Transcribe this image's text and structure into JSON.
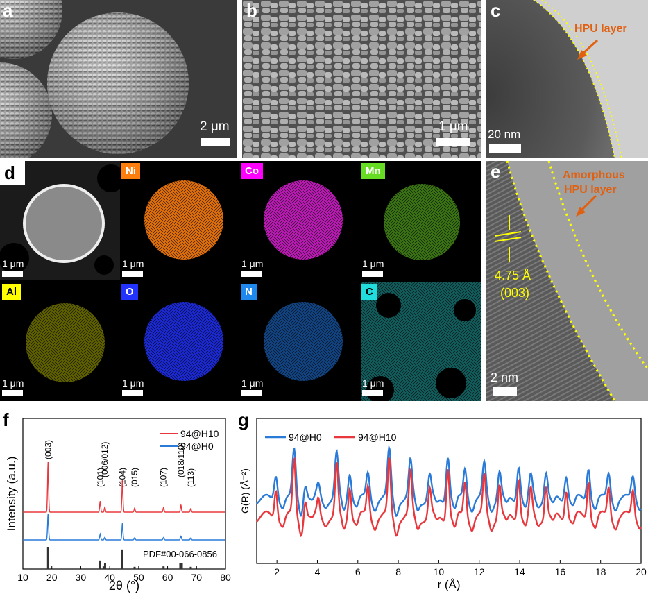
{
  "figure": {
    "panel_a": {
      "label": "a",
      "scale": "2 μm"
    },
    "panel_b": {
      "label": "b",
      "scale": "1 μm"
    },
    "panel_c": {
      "label": "c",
      "scale": "20 nm",
      "annotation": "HPU layer"
    },
    "panel_d": {
      "label": "d",
      "maps": [
        {
          "element": "",
          "scale": "1 μm",
          "color": "#ffffff"
        },
        {
          "element": "Ni",
          "scale": "1 μm",
          "color": "#ff7f0e"
        },
        {
          "element": "Co",
          "scale": "1 μm",
          "color": "#ff00ff"
        },
        {
          "element": "Mn",
          "scale": "1 μm",
          "color": "#66dd22"
        },
        {
          "element": "Al",
          "scale": "1 μm",
          "color": "#ffff00"
        },
        {
          "element": "O",
          "scale": "1 μm",
          "color": "#2233ff"
        },
        {
          "element": "N",
          "scale": "1 μm",
          "color": "#1e88ee"
        },
        {
          "element": "C",
          "scale": "1 μm",
          "color": "#22dddd"
        }
      ]
    },
    "panel_e": {
      "label": "e",
      "scale": "2 nm",
      "annotation_1": "Amorphous",
      "annotation_2": "HPU layer",
      "spacing": "4.75 Å",
      "plane": "(003)"
    },
    "panel_f": {
      "label": "f"
    },
    "panel_g": {
      "label": "g"
    },
    "colors": {
      "annotation": "#e06010",
      "scale": "#ffffff",
      "dotted": "#ffff00",
      "blue": "#2a7ad8",
      "red": "#e8383d",
      "ref": "#333333"
    }
  },
  "chart_data": [
    {
      "type": "line",
      "id": "f",
      "xlabel": "2θ (°)",
      "ylabel": "Intensity (a.u.)",
      "xlim": [
        10,
        80
      ],
      "xticks": [
        "10",
        "20",
        "30",
        "40",
        "50",
        "60",
        "70",
        "80"
      ],
      "series": [
        {
          "name": "94@H0",
          "color": "#2a7ad8"
        },
        {
          "name": "94@H10",
          "color": "#e8383d"
        }
      ],
      "peaks": [
        {
          "label": "(003)",
          "x": 18.7,
          "h": 1.0
        },
        {
          "label": "(101)",
          "x": 36.7,
          "h": 0.22
        },
        {
          "label": "(006/012)",
          "x": 38.3,
          "h": 0.1
        },
        {
          "label": "(104)",
          "x": 44.4,
          "h": 0.65
        },
        {
          "label": "(015)",
          "x": 48.6,
          "h": 0.08
        },
        {
          "label": "(107)",
          "x": 58.6,
          "h": 0.09
        },
        {
          "label": "(018/110)",
          "x": 64.6,
          "h": 0.14
        },
        {
          "label": "(113)",
          "x": 68.0,
          "h": 0.07
        }
      ],
      "reference": {
        "label": "PDF#00-066-0856",
        "lines": [
          {
            "x": 18.7,
            "h": 1.0
          },
          {
            "x": 36.7,
            "h": 0.38
          },
          {
            "x": 37.9,
            "h": 0.12
          },
          {
            "x": 38.4,
            "h": 0.28
          },
          {
            "x": 44.4,
            "h": 0.88
          },
          {
            "x": 48.6,
            "h": 0.1
          },
          {
            "x": 58.6,
            "h": 0.12
          },
          {
            "x": 64.4,
            "h": 0.25
          },
          {
            "x": 64.9,
            "h": 0.28
          },
          {
            "x": 68.0,
            "h": 0.1
          }
        ]
      }
    },
    {
      "type": "line",
      "id": "g",
      "xlabel": "r (Å)",
      "ylabel": "G(R) (Å⁻²)",
      "xlim": [
        1,
        20
      ],
      "xticks": [
        "2",
        "4",
        "6",
        "8",
        "10",
        "12",
        "14",
        "16",
        "18",
        "20"
      ],
      "series": [
        {
          "name": "94@H0",
          "color": "#2a7ad8"
        },
        {
          "name": "94@H10",
          "color": "#e8383d"
        }
      ],
      "peaks_r": [
        1.95,
        2.85,
        3.4,
        4.05,
        4.95,
        5.6,
        6.5,
        7.55,
        8.6,
        9.55,
        10.45,
        11.3,
        12.25,
        13.0,
        13.95,
        14.55,
        15.3,
        16.3,
        17.4,
        18.4,
        19.6
      ]
    }
  ]
}
